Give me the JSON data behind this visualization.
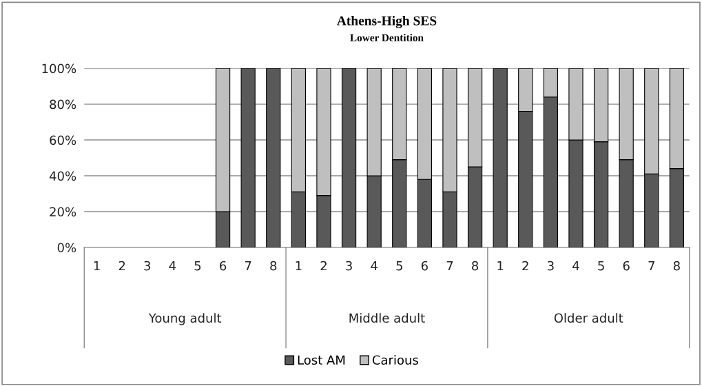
{
  "chart_data": {
    "type": "bar",
    "stacked": true,
    "title": "Athens-High SES",
    "subtitle": "Lower Dentition",
    "categories": [
      "1",
      "2",
      "3",
      "4",
      "5",
      "6",
      "7",
      "8",
      "1",
      "2",
      "3",
      "4",
      "5",
      "6",
      "7",
      "8",
      "1",
      "2",
      "3",
      "4",
      "5",
      "6",
      "7",
      "8"
    ],
    "series": [
      {
        "name": "Lost AM",
        "color": "#595959",
        "values": [
          null,
          null,
          null,
          null,
          null,
          20,
          100,
          100,
          31,
          29,
          100,
          40,
          49,
          38,
          31,
          45,
          100,
          76,
          84,
          60,
          59,
          49,
          41,
          44
        ]
      },
      {
        "name": "Carious",
        "color": "#bfbfbf",
        "values": [
          null,
          null,
          null,
          null,
          null,
          80,
          null,
          null,
          69,
          71,
          null,
          60,
          51,
          62,
          69,
          55,
          null,
          24,
          16,
          40,
          41,
          51,
          59,
          56
        ]
      }
    ],
    "annotations": [
      "Young adult",
      "Middle adult",
      "Older adult"
    ],
    "ylim": [
      0,
      100
    ],
    "yticks": [
      {
        "value": 0,
        "label": "0%"
      },
      {
        "value": 20,
        "label": "20%"
      },
      {
        "value": 40,
        "label": "40%"
      },
      {
        "value": 60,
        "label": "60%"
      },
      {
        "value": 80,
        "label": "80%"
      },
      {
        "value": 100,
        "label": "100%"
      }
    ],
    "grid": "y",
    "legend": "bottom",
    "marker": "square"
  }
}
